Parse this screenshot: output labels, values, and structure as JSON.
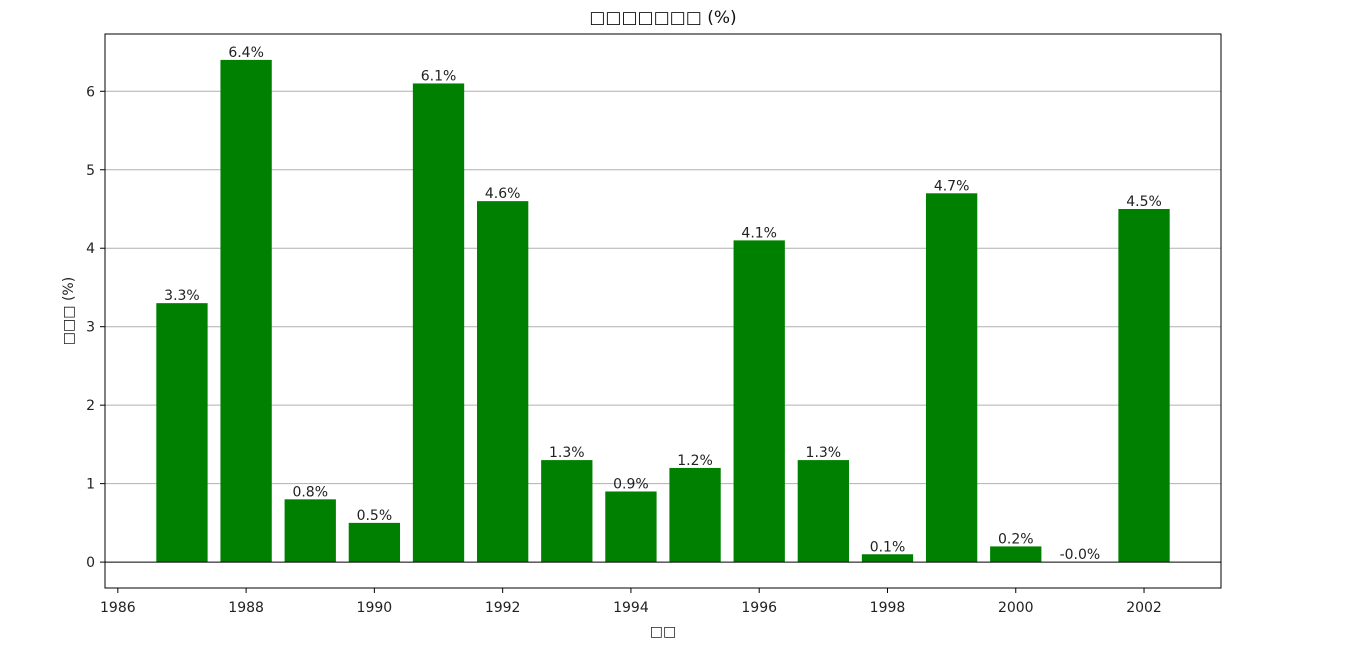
{
  "chart_data": {
    "type": "bar",
    "title": "□□□□□□□ (%)",
    "xlabel": "□□",
    "ylabel": "□□□ (%)",
    "x": [
      1987,
      1988,
      1989,
      1990,
      1991,
      1992,
      1993,
      1994,
      1995,
      1996,
      1997,
      1998,
      1999,
      2000,
      2001,
      2002
    ],
    "values": [
      3.3,
      6.4,
      0.8,
      0.5,
      6.1,
      4.6,
      1.3,
      0.9,
      1.2,
      4.1,
      1.3,
      0.1,
      4.7,
      0.2,
      -0.0,
      4.5
    ],
    "labels": [
      "3.3%",
      "6.4%",
      "0.8%",
      "0.5%",
      "6.1%",
      "4.6%",
      "1.3%",
      "0.9%",
      "1.2%",
      "4.1%",
      "1.3%",
      "0.1%",
      "4.7%",
      "0.2%",
      "-0.0%",
      "4.5%"
    ],
    "xticks": [
      1986,
      1988,
      1990,
      1992,
      1994,
      1996,
      1998,
      2000,
      2002
    ],
    "xtick_labels": [
      "1986",
      "1988",
      "1990",
      "1992",
      "1994",
      "1996",
      "1998",
      "2000",
      "2002"
    ],
    "yticks": [
      0,
      1,
      2,
      3,
      4,
      5,
      6
    ],
    "ytick_labels": [
      "0",
      "1",
      "2",
      "3",
      "4",
      "5",
      "6"
    ],
    "xlim": [
      1985.8,
      2003.2
    ],
    "ylim": [
      -0.33,
      6.73
    ],
    "bar_width_years": 0.8,
    "grid": "y",
    "zero_line": true,
    "colors": {
      "bar": "#008000",
      "grid": "#b0b0b0",
      "axis": "#000000"
    }
  }
}
